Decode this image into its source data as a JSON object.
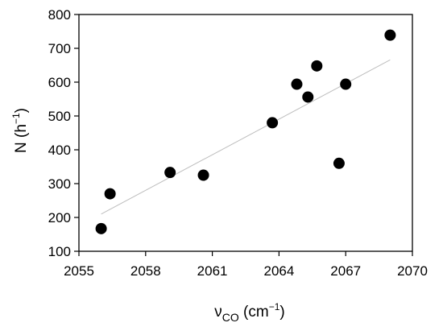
{
  "chart_data": {
    "type": "scatter",
    "title": "",
    "xlabel": {
      "base": "ν",
      "sub": "CO",
      "unit_pre": " (cm",
      "unit_sup": "−1",
      "unit_post": ")"
    },
    "ylabel": {
      "base": "N (h",
      "sup": "−1",
      "post": ")"
    },
    "xlim": [
      2055,
      2070
    ],
    "ylim": [
      100,
      800
    ],
    "xticks": [
      2055,
      2058,
      2061,
      2064,
      2067,
      2070
    ],
    "yticks": [
      100,
      200,
      300,
      400,
      500,
      600,
      700,
      800
    ],
    "points": [
      {
        "x": 2056.0,
        "y": 167
      },
      {
        "x": 2056.4,
        "y": 270
      },
      {
        "x": 2059.1,
        "y": 333
      },
      {
        "x": 2060.6,
        "y": 325
      },
      {
        "x": 2063.7,
        "y": 480
      },
      {
        "x": 2064.8,
        "y": 594
      },
      {
        "x": 2065.3,
        "y": 556
      },
      {
        "x": 2065.7,
        "y": 648
      },
      {
        "x": 2066.7,
        "y": 360
      },
      {
        "x": 2067.0,
        "y": 594
      },
      {
        "x": 2069.0,
        "y": 739
      }
    ],
    "trendline": {
      "x": [
        2056.0,
        2069.0
      ],
      "y": [
        210,
        666
      ]
    },
    "grid": false,
    "legend": "none",
    "colors": {
      "marker": "#000000",
      "trendline": "#bdbdbd",
      "axis": "#000000"
    }
  }
}
